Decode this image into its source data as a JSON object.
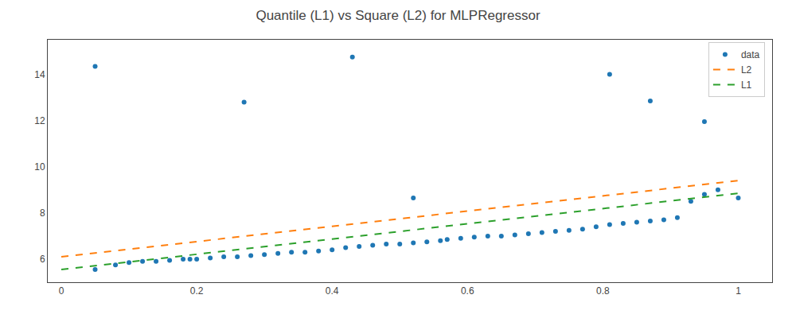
{
  "chart_data": {
    "type": "scatter",
    "title": "Quantile (L1) vs Square (L2) for MLPRegressor",
    "series": [
      {
        "name": "data",
        "type": "scatter",
        "color": "#1f77b4",
        "marker": "point",
        "x": [
          0.05,
          0.08,
          0.1,
          0.12,
          0.14,
          0.16,
          0.18,
          0.19,
          0.2,
          0.22,
          0.24,
          0.26,
          0.28,
          0.3,
          0.32,
          0.34,
          0.36,
          0.38,
          0.4,
          0.42,
          0.44,
          0.46,
          0.48,
          0.5,
          0.52,
          0.54,
          0.56,
          0.57,
          0.59,
          0.61,
          0.63,
          0.65,
          0.67,
          0.69,
          0.71,
          0.73,
          0.75,
          0.77,
          0.79,
          0.81,
          0.83,
          0.85,
          0.87,
          0.89,
          0.91,
          0.93,
          0.95,
          0.97,
          0.05,
          0.27,
          0.43,
          0.52,
          0.81,
          0.87,
          0.95,
          1.0
        ],
        "values": [
          5.55,
          5.75,
          5.85,
          5.9,
          5.9,
          5.95,
          6.0,
          6.0,
          6.0,
          6.05,
          6.1,
          6.1,
          6.15,
          6.2,
          6.25,
          6.3,
          6.3,
          6.35,
          6.4,
          6.5,
          6.55,
          6.6,
          6.65,
          6.65,
          6.7,
          6.75,
          6.8,
          6.85,
          6.9,
          6.95,
          7.0,
          7.0,
          7.05,
          7.1,
          7.15,
          7.2,
          7.25,
          7.3,
          7.4,
          7.5,
          7.55,
          7.6,
          7.65,
          7.7,
          7.8,
          8.5,
          8.8,
          9.0,
          14.35,
          12.8,
          14.75,
          8.65,
          14.0,
          12.85,
          11.95,
          8.65
        ]
      },
      {
        "name": "L2",
        "type": "line",
        "color": "#ff7f0e",
        "line_style": "dashed",
        "x": [
          0.0,
          1.0
        ],
        "values": [
          6.1,
          9.4
        ]
      },
      {
        "name": "L1",
        "type": "line",
        "color": "#2ca02c",
        "line_style": "dashed",
        "x": [
          0.0,
          1.0
        ],
        "values": [
          5.55,
          8.85
        ]
      }
    ],
    "xlim": [
      -0.02,
      1.05
    ],
    "xticks": [
      0,
      0.2,
      0.4,
      0.6,
      0.8,
      1
    ],
    "ylim": [
      5.0,
      15.5
    ],
    "yticks": [
      6,
      8,
      10,
      12,
      14
    ],
    "legend": "upper right",
    "grid": false
  }
}
